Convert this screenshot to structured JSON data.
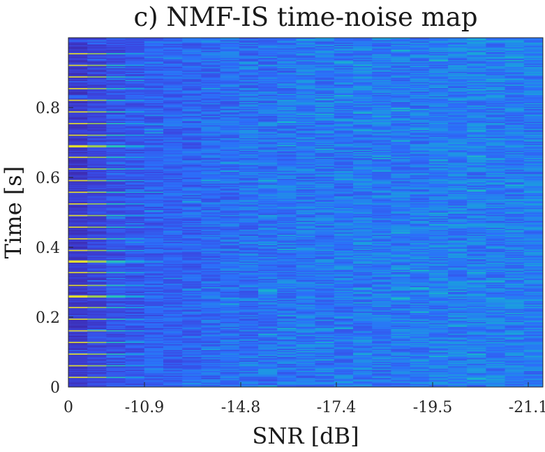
{
  "chart_data": {
    "type": "heatmap",
    "title": "c) NMF-IS time-noise map",
    "xlabel": "SNR [dB]",
    "ylabel": "Time [s]",
    "x_tick_labels": [
      "0",
      "-10.9",
      "-14.8",
      "-17.4",
      "-19.5",
      "-21.1"
    ],
    "y_tick_labels": [
      "0",
      "0.2",
      "0.4",
      "0.6",
      "0.8"
    ],
    "y_ticks": [
      0,
      0.2,
      0.4,
      0.6,
      0.8
    ],
    "ylim": [
      0,
      1.0
    ],
    "colormap": [
      "#3e26a8",
      "#3a48e2",
      "#2c6ffa",
      "#1c9be1",
      "#16b9ca",
      "#4ec89a",
      "#b4c942",
      "#f9e827"
    ],
    "columns": 25,
    "time_bins": 300,
    "column_mean_level": [
      0.08,
      0.13,
      0.17,
      0.2,
      0.22,
      0.24,
      0.25,
      0.27,
      0.28,
      0.29,
      0.3,
      0.3,
      0.31,
      0.31,
      0.31,
      0.32,
      0.32,
      0.32,
      0.32,
      0.33,
      0.33,
      0.33,
      0.33,
      0.33,
      0.33
    ],
    "column_spread": [
      0.06,
      0.07,
      0.08,
      0.09,
      0.1,
      0.1,
      0.11,
      0.11,
      0.11,
      0.12,
      0.12,
      0.12,
      0.12,
      0.12,
      0.12,
      0.12,
      0.12,
      0.12,
      0.12,
      0.12,
      0.12,
      0.12,
      0.12,
      0.12,
      0.12
    ],
    "onset_times": [
      0.029,
      0.062,
      0.095,
      0.128,
      0.161,
      0.194,
      0.227,
      0.26,
      0.293,
      0.327,
      0.36,
      0.393,
      0.426,
      0.459,
      0.492,
      0.525,
      0.558,
      0.591,
      0.624,
      0.657,
      0.69,
      0.723,
      0.756,
      0.789,
      0.822,
      0.855,
      0.888,
      0.921,
      0.954
    ],
    "onset_peak_level": [
      0.95,
      0.82,
      0.62,
      0.45,
      0.32,
      0.24,
      0.18,
      0.14,
      0.11,
      0.09,
      0.08,
      0.07,
      0.06,
      0.05,
      0.05,
      0.04,
      0.04,
      0.04,
      0.03,
      0.03,
      0.03,
      0.03,
      0.03,
      0.03,
      0.03
    ]
  }
}
